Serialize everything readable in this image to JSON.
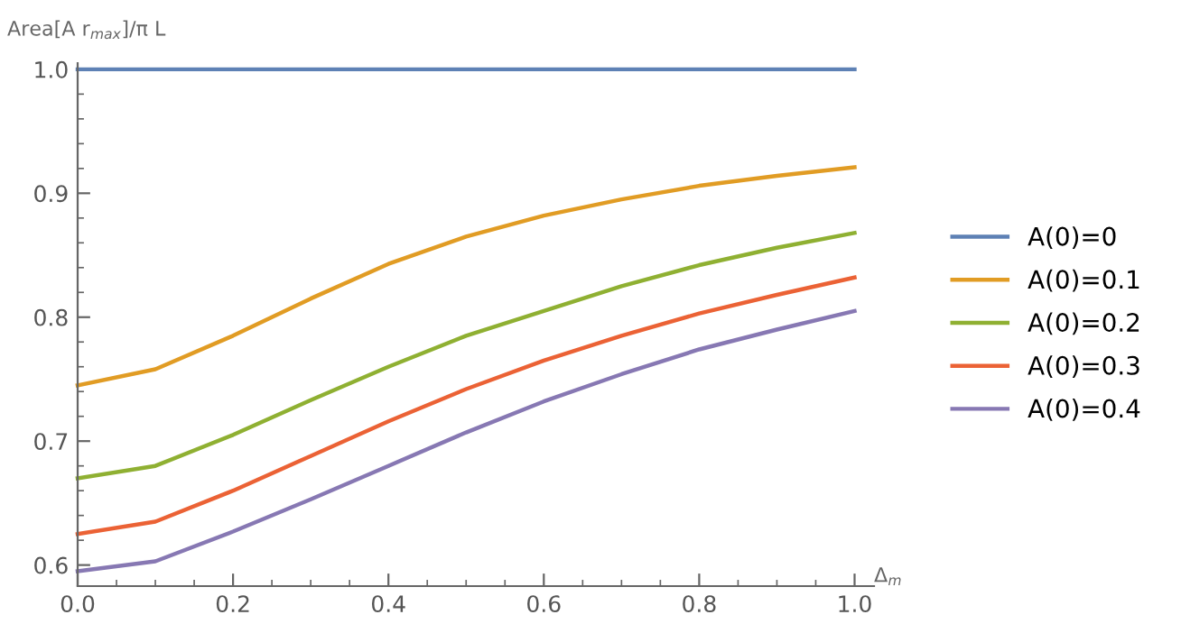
{
  "chart_data": {
    "type": "line",
    "ylabel": "Area[A r$_{max}$]/π L",
    "xlabel": "Δ$_{m}$",
    "x": [
      0,
      0.1,
      0.2,
      0.3,
      0.4,
      0.5,
      0.6,
      0.7,
      0.8,
      0.9,
      1.0
    ],
    "series": [
      {
        "name": "A(0)=0",
        "color": "#5e81b5",
        "values": [
          1.0,
          1.0,
          1.0,
          1.0,
          1.0,
          1.0,
          1.0,
          1.0,
          1.0,
          1.0,
          1.0
        ]
      },
      {
        "name": "A(0)=0.1",
        "color": "#e19c24",
        "values": [
          0.745,
          0.758,
          0.785,
          0.815,
          0.843,
          0.865,
          0.882,
          0.895,
          0.906,
          0.914,
          0.921
        ]
      },
      {
        "name": "A(0)=0.2",
        "color": "#8fb032",
        "values": [
          0.67,
          0.68,
          0.705,
          0.733,
          0.76,
          0.785,
          0.805,
          0.825,
          0.842,
          0.856,
          0.868
        ]
      },
      {
        "name": "A(0)=0.3",
        "color": "#eb6235",
        "values": [
          0.625,
          0.635,
          0.66,
          0.688,
          0.716,
          0.742,
          0.765,
          0.785,
          0.803,
          0.818,
          0.832
        ]
      },
      {
        "name": "A(0)=0.4",
        "color": "#8778b3",
        "values": [
          0.595,
          0.603,
          0.627,
          0.653,
          0.68,
          0.707,
          0.732,
          0.754,
          0.774,
          0.79,
          0.805
        ]
      }
    ],
    "xlim": [
      0,
      1.025
    ],
    "ylim": [
      0.583,
      1.005
    ],
    "xticks": [
      {
        "value": 0,
        "label": "0.0"
      },
      {
        "value": 0.2,
        "label": "0.2"
      },
      {
        "value": 0.4,
        "label": "0.4"
      },
      {
        "value": 0.6,
        "label": "0.6"
      },
      {
        "value": 0.8,
        "label": "0.8"
      },
      {
        "value": 1.0,
        "label": "1.0"
      }
    ],
    "yticks": [
      {
        "value": 0.6,
        "label": "0.6"
      },
      {
        "value": 0.7,
        "label": "0.7"
      },
      {
        "value": 0.8,
        "label": "0.8"
      },
      {
        "value": 0.9,
        "label": "0.9"
      },
      {
        "value": 1.0,
        "label": "1.0"
      }
    ],
    "legend": "right",
    "grid": false,
    "marker": "none",
    "line_style": "solid"
  }
}
